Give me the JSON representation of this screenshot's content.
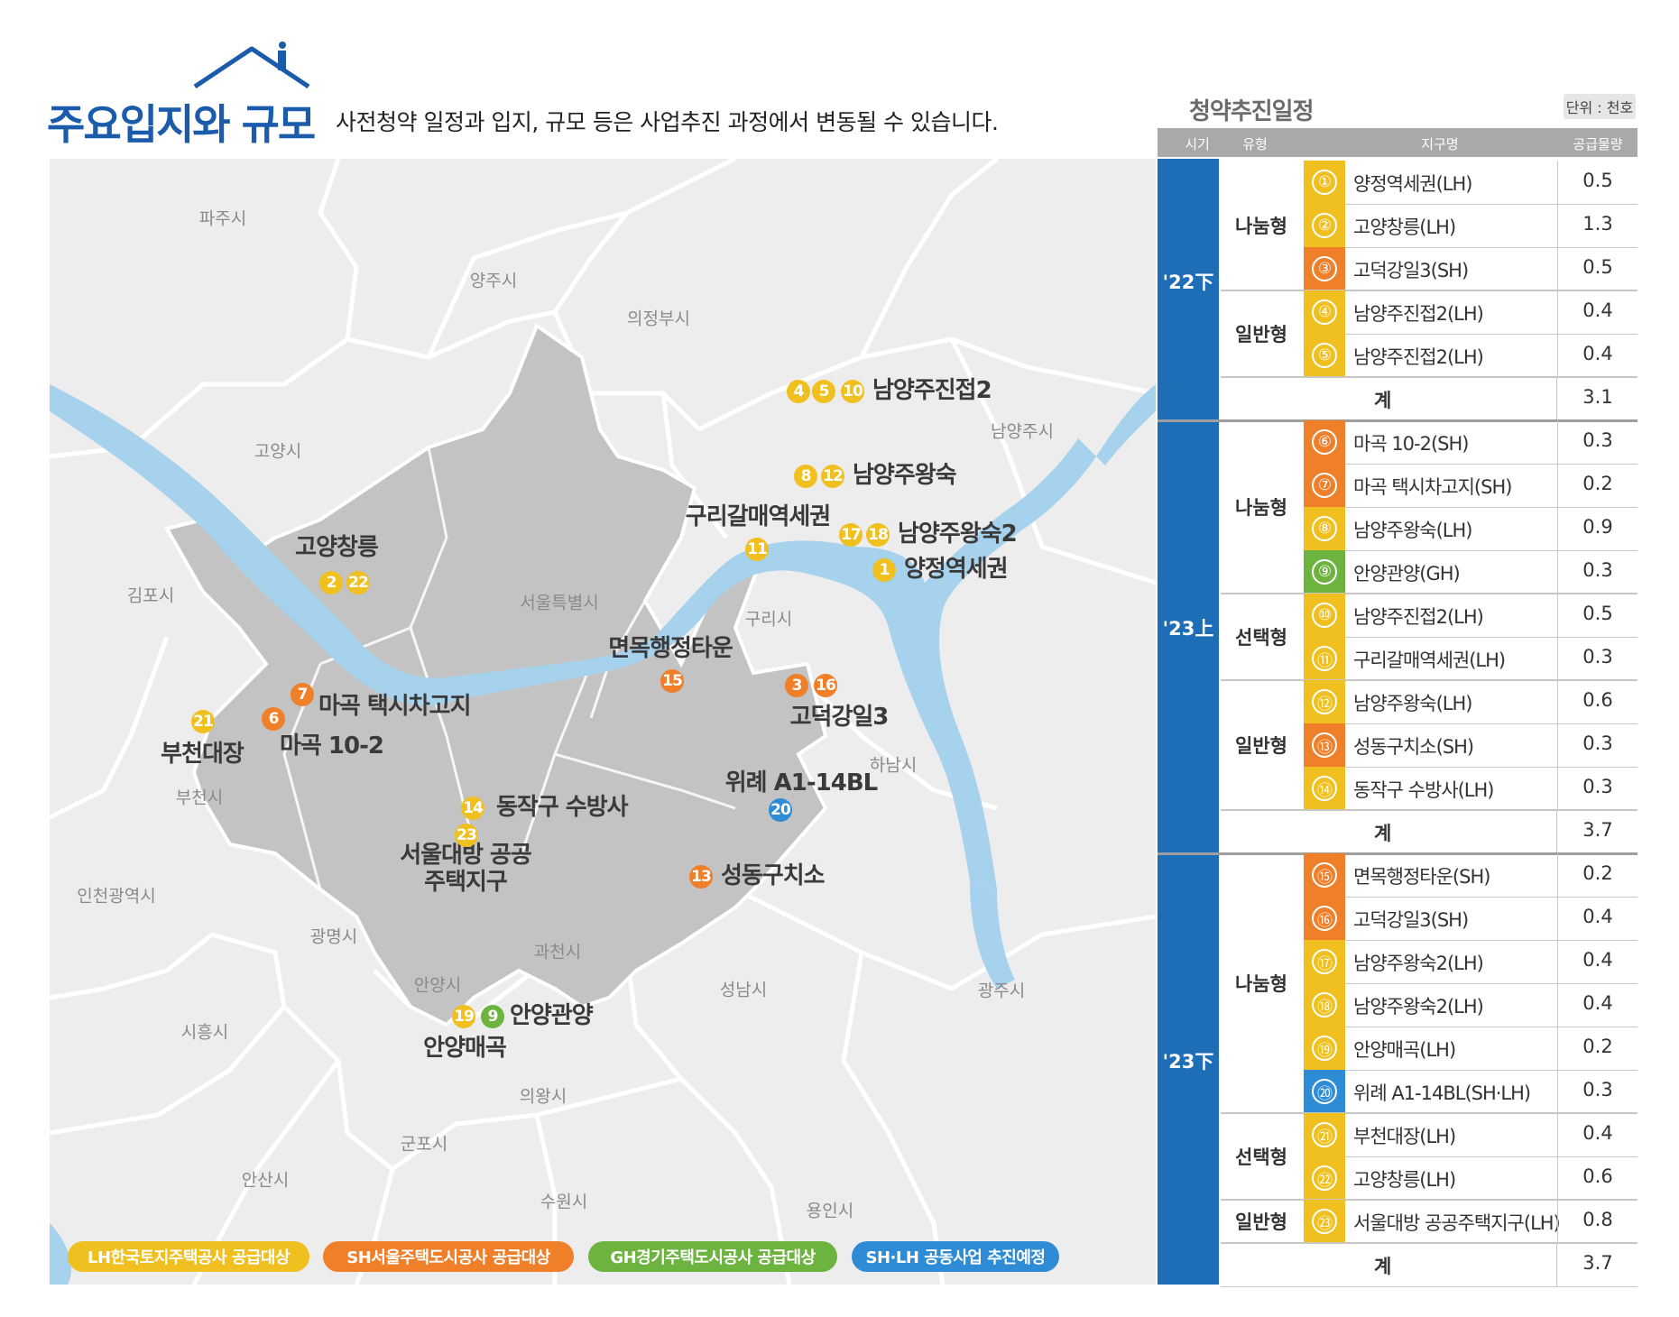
{
  "header": {
    "title": "주요입지와 규모",
    "subtitle": "사전청약 일정과 입지, 규모 등은 사업추진 과정에서 변동될 수 있습니다."
  },
  "colors": {
    "LH": "#f0c020",
    "SH": "#f07f2a",
    "GH": "#6db33f",
    "SHLH": "#2e8bd6",
    "brand": "#1d6db7"
  },
  "map": {
    "cities": [
      "파주시",
      "양주시",
      "의정부시",
      "남양주시",
      "고양시",
      "김포시",
      "서울특별시",
      "구리시",
      "하남시",
      "부천시",
      "인천광역시",
      "광명시",
      "과천시",
      "안양시",
      "성남시",
      "광주시",
      "시흥시",
      "의왕시",
      "군포시",
      "안산시",
      "수원시",
      "용인시"
    ],
    "sites": [
      "남양주진접2",
      "남양주왕숙",
      "구리갈매역세권",
      "남양주왕숙2",
      "양정역세권",
      "고양창릉",
      "면목행정타운",
      "고덕강일3",
      "마곡 택시차고지",
      "부천대장",
      "마곡 10-2",
      "위례 A1-14BL",
      "동작구 수방사",
      "서울대방 공공주택지구",
      "성동구치소",
      "안양관양",
      "안양매곡"
    ],
    "markers": [
      {
        "n": "4",
        "c": "LH"
      },
      {
        "n": "5",
        "c": "LH"
      },
      {
        "n": "10",
        "c": "LH"
      },
      {
        "n": "8",
        "c": "LH"
      },
      {
        "n": "12",
        "c": "LH"
      },
      {
        "n": "11",
        "c": "LH"
      },
      {
        "n": "17",
        "c": "LH"
      },
      {
        "n": "18",
        "c": "LH"
      },
      {
        "n": "1",
        "c": "LH"
      },
      {
        "n": "2",
        "c": "LH"
      },
      {
        "n": "22",
        "c": "LH"
      },
      {
        "n": "15",
        "c": "SH"
      },
      {
        "n": "3",
        "c": "SH"
      },
      {
        "n": "16",
        "c": "SH"
      },
      {
        "n": "7",
        "c": "SH"
      },
      {
        "n": "6",
        "c": "SH"
      },
      {
        "n": "21",
        "c": "LH"
      },
      {
        "n": "20",
        "c": "SHLH"
      },
      {
        "n": "14",
        "c": "LH"
      },
      {
        "n": "23",
        "c": "LH"
      },
      {
        "n": "13",
        "c": "SH"
      },
      {
        "n": "19",
        "c": "LH"
      },
      {
        "n": "9",
        "c": "GH"
      }
    ],
    "legend": [
      "LH한국토지주택공사 공급대상",
      "SH서울주택도시공사 공급대상",
      "GH경기주택도시공사 공급대상",
      "SH·LH 공동사업 추진예정"
    ]
  },
  "schedule": {
    "title": "청약추진일정",
    "unit": "단위 : 천호",
    "columns": [
      "시기",
      "유형",
      "지구명",
      "공급물량"
    ],
    "periods": [
      {
        "label": "'22下",
        "groups": [
          {
            "type": "나눔형",
            "rows": [
              {
                "n": "①",
                "name": "양정역세권(LH)",
                "amount": "0.5",
                "c": "LH"
              },
              {
                "n": "②",
                "name": "고양창릉(LH)",
                "amount": "1.3",
                "c": "LH"
              },
              {
                "n": "③",
                "name": "고덕강일3(SH)",
                "amount": "0.5",
                "c": "SH"
              }
            ]
          },
          {
            "type": "일반형",
            "rows": [
              {
                "n": "④",
                "name": "남양주진접2(LH)",
                "amount": "0.4",
                "c": "LH"
              },
              {
                "n": "⑤",
                "name": "남양주진접2(LH)",
                "amount": "0.4",
                "c": "LH"
              }
            ]
          }
        ],
        "total_label": "계",
        "total": "3.1"
      },
      {
        "label": "'23上",
        "groups": [
          {
            "type": "나눔형",
            "rows": [
              {
                "n": "⑥",
                "name": "마곡 10-2(SH)",
                "amount": "0.3",
                "c": "SH"
              },
              {
                "n": "⑦",
                "name": "마곡 택시차고지(SH)",
                "amount": "0.2",
                "c": "SH"
              },
              {
                "n": "⑧",
                "name": "남양주왕숙(LH)",
                "amount": "0.9",
                "c": "LH"
              },
              {
                "n": "⑨",
                "name": "안양관양(GH)",
                "amount": "0.3",
                "c": "GH"
              }
            ]
          },
          {
            "type": "선택형",
            "rows": [
              {
                "n": "⑩",
                "name": "남양주진접2(LH)",
                "amount": "0.5",
                "c": "LH"
              },
              {
                "n": "⑪",
                "name": "구리갈매역세권(LH)",
                "amount": "0.3",
                "c": "LH"
              }
            ]
          },
          {
            "type": "일반형",
            "rows": [
              {
                "n": "⑫",
                "name": "남양주왕숙(LH)",
                "amount": "0.6",
                "c": "LH"
              },
              {
                "n": "⑬",
                "name": "성동구치소(SH)",
                "amount": "0.3",
                "c": "SH"
              },
              {
                "n": "⑭",
                "name": "동작구 수방사(LH)",
                "amount": "0.3",
                "c": "LH"
              }
            ]
          }
        ],
        "total_label": "계",
        "total": "3.7"
      },
      {
        "label": "'23下",
        "groups": [
          {
            "type": "나눔형",
            "rows": [
              {
                "n": "⑮",
                "name": "면목행정타운(SH)",
                "amount": "0.2",
                "c": "SH"
              },
              {
                "n": "⑯",
                "name": "고덕강일3(SH)",
                "amount": "0.4",
                "c": "SH"
              },
              {
                "n": "⑰",
                "name": "남양주왕숙2(LH)",
                "amount": "0.4",
                "c": "LH"
              },
              {
                "n": "⑱",
                "name": "남양주왕숙2(LH)",
                "amount": "0.4",
                "c": "LH"
              },
              {
                "n": "⑲",
                "name": "안양매곡(LH)",
                "amount": "0.2",
                "c": "LH"
              },
              {
                "n": "⑳",
                "name": "위례 A1-14BL(SH·LH)",
                "amount": "0.3",
                "c": "SHLH"
              }
            ]
          },
          {
            "type": "선택형",
            "rows": [
              {
                "n": "㉑",
                "name": "부천대장(LH)",
                "amount": "0.4",
                "c": "LH"
              },
              {
                "n": "㉒",
                "name": "고양창릉(LH)",
                "amount": "0.6",
                "c": "LH"
              }
            ]
          },
          {
            "type": "일반형",
            "rows": [
              {
                "n": "㉓",
                "name": "서울대방 공공주택지구(LH)",
                "amount": "0.8",
                "c": "LH"
              }
            ]
          }
        ],
        "total_label": "계",
        "total": "3.7"
      }
    ]
  }
}
